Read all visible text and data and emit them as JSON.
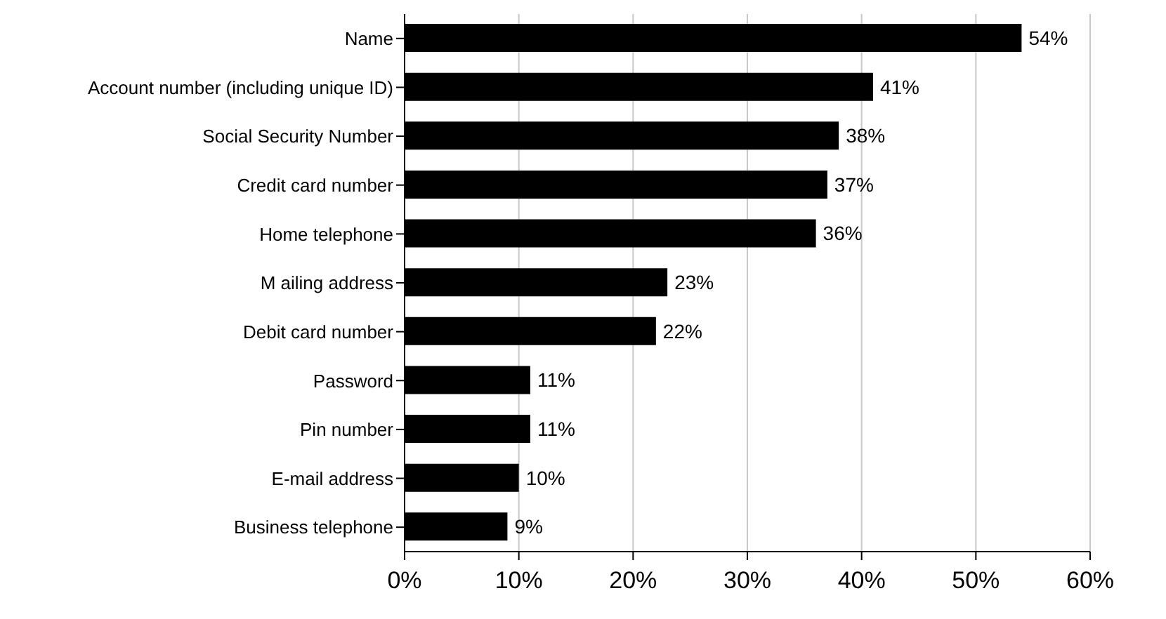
{
  "chart_data": {
    "type": "bar",
    "orientation": "horizontal",
    "categories": [
      "Name",
      "Account number (including unique ID)",
      "Social Security Number",
      "Credit card number",
      "Home telephone",
      "M ailing address",
      "Debit card number",
      "Password",
      "Pin number",
      "E-mail address",
      "Business telephone"
    ],
    "values": [
      54,
      41,
      38,
      37,
      36,
      23,
      22,
      11,
      11,
      10,
      9
    ],
    "value_labels": [
      "54%",
      "41%",
      "38%",
      "37%",
      "36%",
      "23%",
      "22%",
      "11%",
      "11%",
      "10%",
      "9%"
    ],
    "color": "#000000",
    "xlim": [
      0,
      60
    ],
    "xticks": [
      {
        "value": 0,
        "label": "0%"
      },
      {
        "value": 10,
        "label": "10%"
      },
      {
        "value": 20,
        "label": "20%"
      },
      {
        "value": 30,
        "label": "30%"
      },
      {
        "value": 40,
        "label": "40%"
      },
      {
        "value": 50,
        "label": "50%"
      },
      {
        "value": 60,
        "label": "60%"
      }
    ],
    "grid": "x"
  }
}
